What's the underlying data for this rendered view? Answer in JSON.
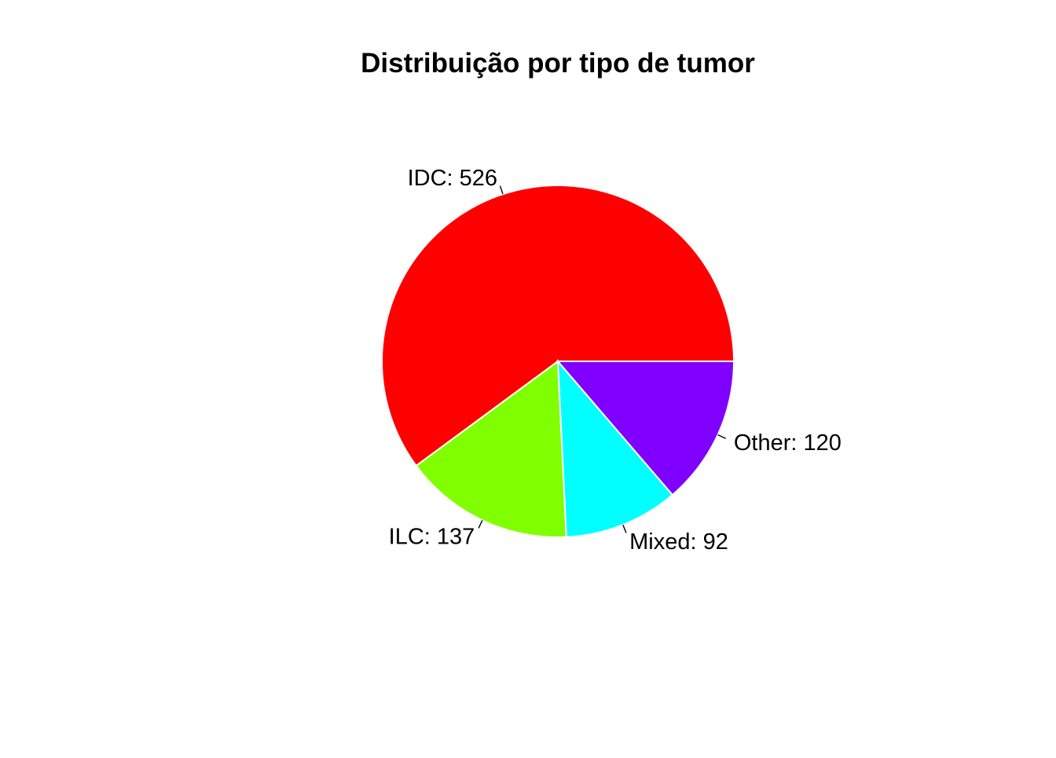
{
  "chart_data": {
    "type": "pie",
    "title": "Distribuição por tipo de tumor",
    "start_angle_deg": 0,
    "direction": "counterclockwise",
    "slices": [
      {
        "category": "IDC",
        "value": 526,
        "label": "IDC: 526",
        "color": "#FF0000"
      },
      {
        "category": "ILC",
        "value": 137,
        "label": "ILC: 137",
        "color": "#80FF00"
      },
      {
        "category": "Mixed",
        "value": 92,
        "label": "Mixed: 92",
        "color": "#00FFFF"
      },
      {
        "category": "Other",
        "value": 120,
        "label": "Other: 120",
        "color": "#8000FF"
      }
    ]
  }
}
